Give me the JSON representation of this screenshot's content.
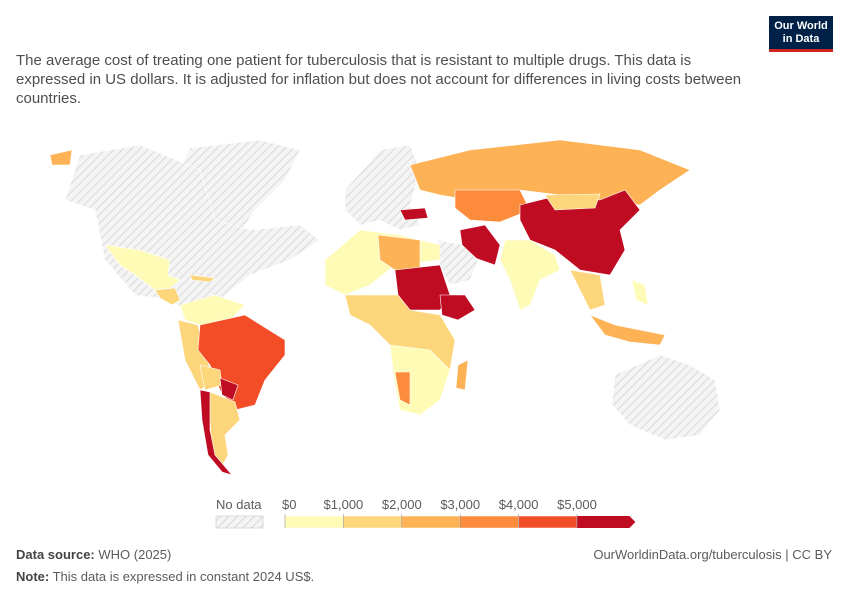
{
  "header": {
    "title": "The average cost of treating one patient for tuberculosis that is resistant to multiple drugs. This data is expressed in US dollars. It is adjusted for inflation but does not account for differences in living costs between countries.",
    "logo": [
      "Our World",
      "in Data"
    ]
  },
  "legend": {
    "no_data": "No data",
    "ticks": [
      {
        "value": 0,
        "label": "$0"
      },
      {
        "value": 1000,
        "label": "$1,000"
      },
      {
        "value": 2000,
        "label": "$2,000"
      },
      {
        "value": 3000,
        "label": "$3,000"
      },
      {
        "value": 4000,
        "label": "$4,000"
      },
      {
        "value": 5000,
        "label": "$5,000"
      }
    ],
    "colors": [
      "#fefbb7",
      "#fdd67c",
      "#fdb355",
      "#fc8c3c",
      "#f24d27",
      "#c00c22"
    ]
  },
  "footer": {
    "source_label": "Data source:",
    "source": "WHO (2025)",
    "url": "OurWorldinData.org/tuberculosis | CC BY",
    "note_label": "Note:",
    "note": "This data is expressed in constant 2024 US$."
  }
}
